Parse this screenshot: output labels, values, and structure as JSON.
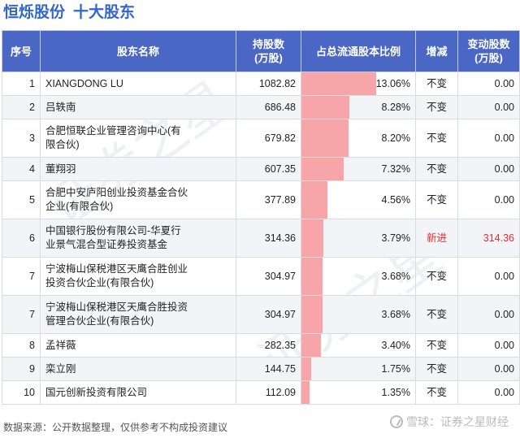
{
  "title": {
    "company": "恒烁股份",
    "section": "十大股东"
  },
  "columns": {
    "rank": "序号",
    "name": "股东名称",
    "shares": "持股数\n(万股)",
    "ratio": "占总流通股本比例",
    "change": "增减",
    "delta": "变动股数\n(万股)"
  },
  "rows": [
    {
      "rank": "1",
      "name": "XIANGDONG LU",
      "shares": "1082.82",
      "ratio": "13.06%",
      "ratio_value": 13.06,
      "change": "不变",
      "delta": "0.00",
      "highlight": false
    },
    {
      "rank": "2",
      "name": "吕轶南",
      "shares": "686.48",
      "ratio": "8.28%",
      "ratio_value": 8.28,
      "change": "不变",
      "delta": "0.00",
      "highlight": false
    },
    {
      "rank": "3",
      "name": "合肥恒联企业管理咨询中心(有\n限合伙)",
      "shares": "679.82",
      "ratio": "8.20%",
      "ratio_value": 8.2,
      "change": "不变",
      "delta": "0.00",
      "highlight": false
    },
    {
      "rank": "4",
      "name": "董翔羽",
      "shares": "607.35",
      "ratio": "7.32%",
      "ratio_value": 7.32,
      "change": "不变",
      "delta": "0.00",
      "highlight": false
    },
    {
      "rank": "5",
      "name": "合肥中安庐阳创业投资基金合伙\n企业(有限合伙)",
      "shares": "377.89",
      "ratio": "4.56%",
      "ratio_value": 4.56,
      "change": "不变",
      "delta": "0.00",
      "highlight": false
    },
    {
      "rank": "6",
      "name": "中国银行股份有限公司-华夏行\n业景气混合型证券投资基金",
      "shares": "314.36",
      "ratio": "3.79%",
      "ratio_value": 3.79,
      "change": "新进",
      "delta": "314.36",
      "highlight": true
    },
    {
      "rank": "7",
      "name": "宁波梅山保税港区天鹰合胜创业\n投资合伙企业(有限合伙)",
      "shares": "304.97",
      "ratio": "3.68%",
      "ratio_value": 3.68,
      "change": "不变",
      "delta": "0.00",
      "highlight": false
    },
    {
      "rank": "7",
      "name": "宁波梅山保税港区天鹰合胜投资\n管理合伙企业(有限合伙)",
      "shares": "304.97",
      "ratio": "3.68%",
      "ratio_value": 3.68,
      "change": "不变",
      "delta": "0.00",
      "highlight": false
    },
    {
      "rank": "8",
      "name": "孟祥薇",
      "shares": "282.35",
      "ratio": "3.40%",
      "ratio_value": 3.4,
      "change": "不变",
      "delta": "0.00",
      "highlight": false
    },
    {
      "rank": "9",
      "name": "栾立刚",
      "shares": "144.75",
      "ratio": "1.75%",
      "ratio_value": 1.75,
      "change": "不变",
      "delta": "0.00",
      "highlight": false
    },
    {
      "rank": "10",
      "name": "国元创新投资有限公司",
      "shares": "112.09",
      "ratio": "1.35%",
      "ratio_value": 1.35,
      "change": "不变",
      "delta": "0.00",
      "highlight": false
    }
  ],
  "ratio_scale_max": 13.06,
  "colors": {
    "header_bg": "#4a67c6",
    "title": "#3366cc",
    "bar": "#f7a5a8",
    "new_entry": "#e03030"
  },
  "footer": {
    "source": "数据来源：公开数据整理，仅供参考不构成投资建议",
    "brand": "雪球：证券之星财经",
    "brand_icon": "snowball-icon"
  }
}
